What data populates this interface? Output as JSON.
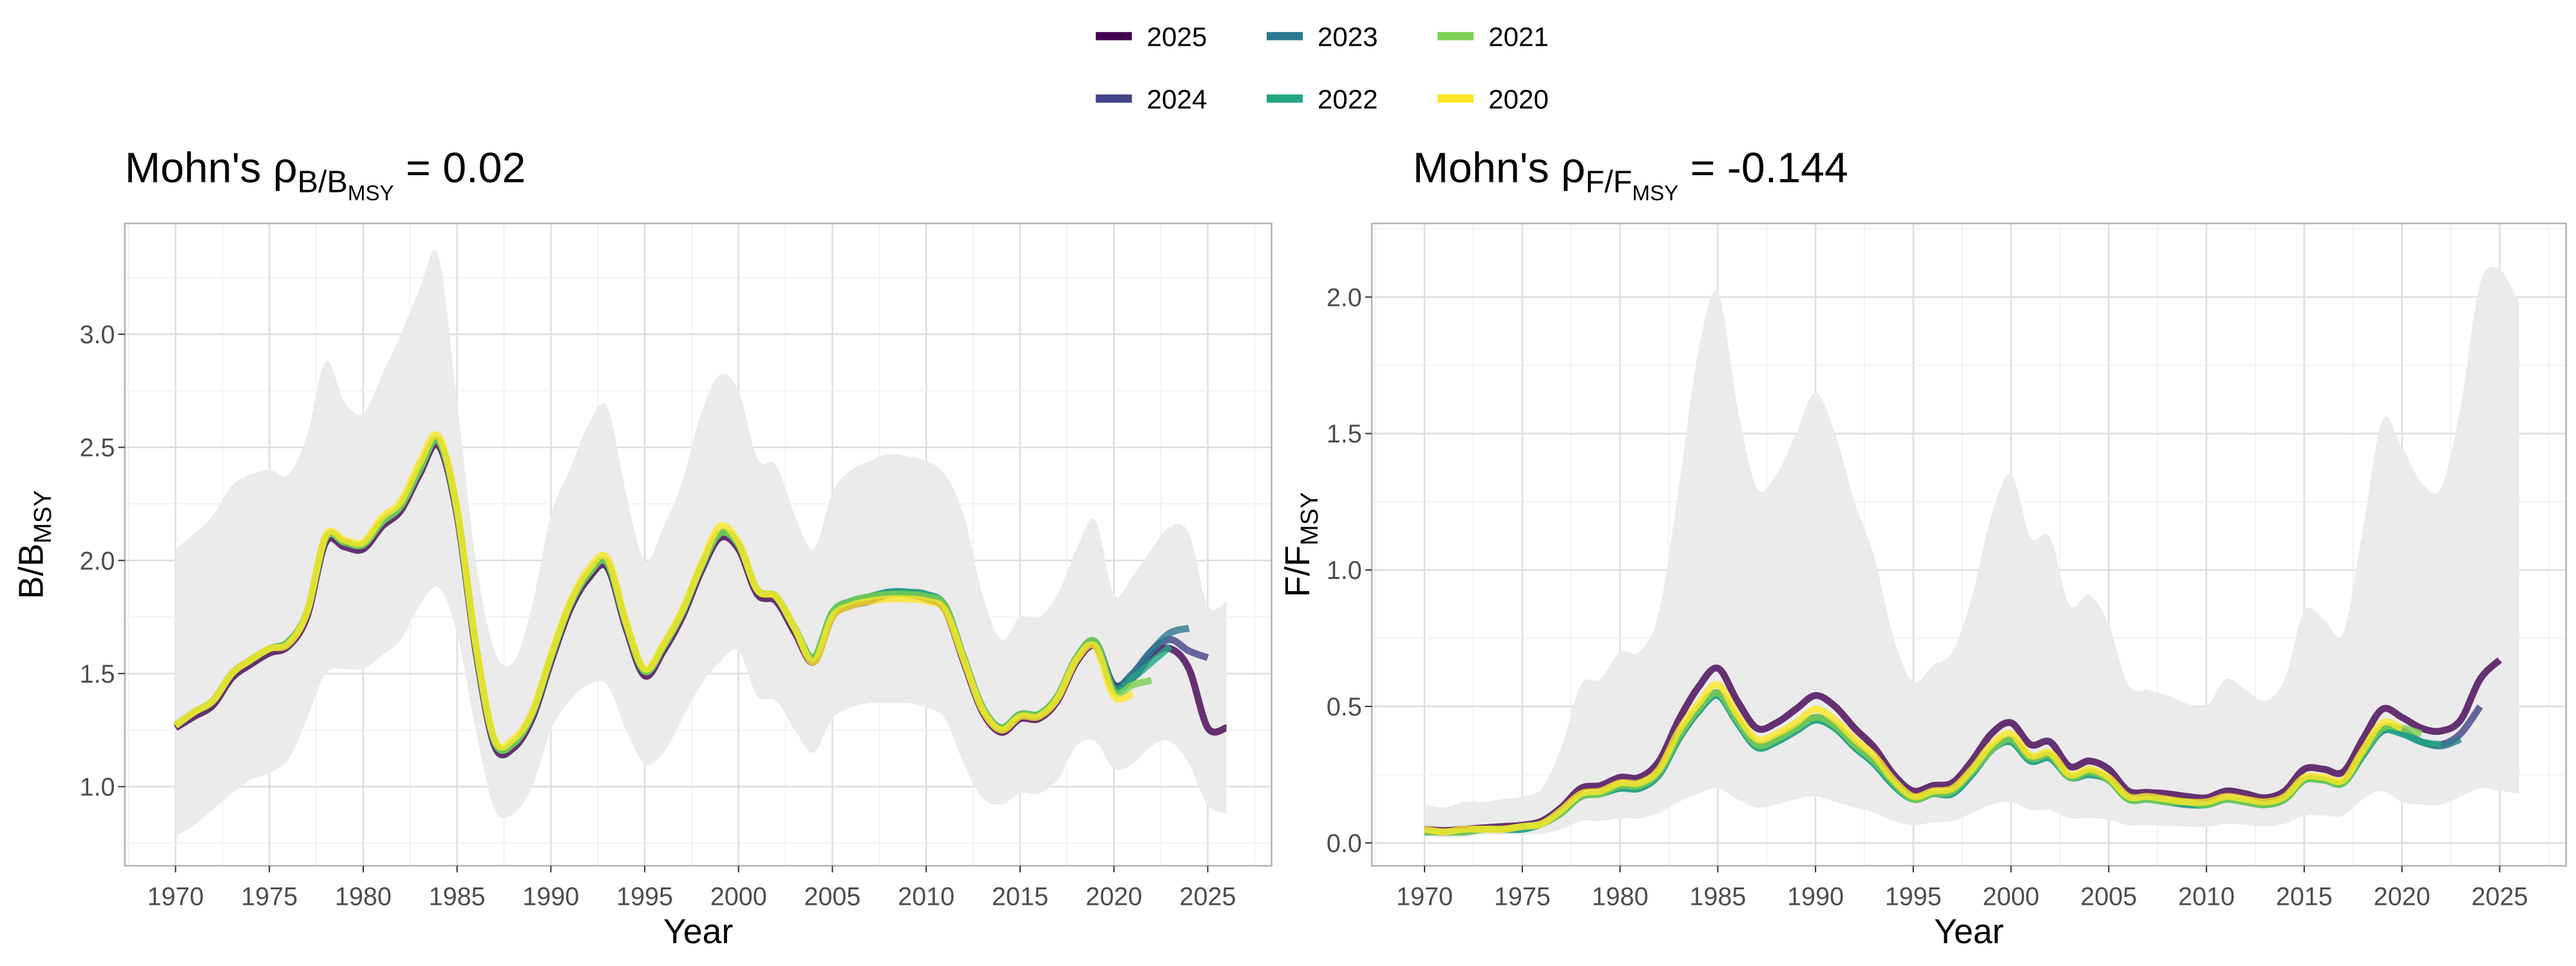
{
  "legend": {
    "position": "top",
    "items": [
      {
        "label": "2025",
        "color": "#440154"
      },
      {
        "label": "2023",
        "color": "#2A788E"
      },
      {
        "label": "2021",
        "color": "#7AD151"
      },
      {
        "label": "2024",
        "color": "#414487"
      },
      {
        "label": "2022",
        "color": "#22A884"
      },
      {
        "label": "2020",
        "color": "#FDE725"
      }
    ]
  },
  "chart_data": [
    {
      "type": "line",
      "title": {
        "prefix": "Mohn's ρ",
        "sub": "B/B",
        "subsub": "MSY",
        "suffix": " = 0.02"
      },
      "xlabel": "Year",
      "ylabel": {
        "main": "B/B",
        "sub": "MSY"
      },
      "xlim": [
        1967.3,
        2028.4
      ],
      "ylim": [
        0.65,
        3.49
      ],
      "xticks": [
        "1970",
        "1975",
        "1980",
        "1985",
        "1990",
        "1995",
        "2000",
        "2005",
        "2010",
        "2015",
        "2020",
        "2025"
      ],
      "yticks": [
        "1.0",
        "1.5",
        "2.0",
        "2.5",
        "3.0"
      ],
      "grid": true,
      "band": {
        "start": 1970,
        "upper": [
          2.05,
          2.12,
          2.2,
          2.33,
          2.38,
          2.4,
          2.38,
          2.55,
          2.88,
          2.7,
          2.65,
          2.82,
          3.0,
          3.2,
          3.35,
          2.7,
          2.0,
          1.6,
          1.55,
          1.8,
          2.2,
          2.4,
          2.6,
          2.68,
          2.3,
          2.0,
          2.15,
          2.35,
          2.65,
          2.82,
          2.75,
          2.45,
          2.42,
          2.2,
          2.05,
          2.3,
          2.4,
          2.44,
          2.47,
          2.46,
          2.44,
          2.38,
          2.2,
          1.85,
          1.65,
          1.75,
          1.75,
          1.85,
          2.05,
          2.18,
          1.85,
          1.93,
          2.05,
          2.15,
          2.12,
          1.8,
          1.82
        ],
        "lower": [
          0.78,
          0.83,
          0.9,
          0.97,
          1.03,
          1.06,
          1.12,
          1.3,
          1.5,
          1.52,
          1.52,
          1.58,
          1.65,
          1.8,
          1.88,
          1.68,
          1.25,
          0.9,
          0.88,
          1.0,
          1.25,
          1.38,
          1.45,
          1.45,
          1.25,
          1.1,
          1.15,
          1.3,
          1.45,
          1.55,
          1.6,
          1.4,
          1.38,
          1.25,
          1.15,
          1.3,
          1.35,
          1.37,
          1.37,
          1.37,
          1.35,
          1.3,
          1.1,
          0.95,
          0.92,
          0.97,
          0.97,
          1.03,
          1.18,
          1.2,
          1.08,
          1.1,
          1.18,
          1.2,
          1.1,
          0.92,
          0.88
        ]
      },
      "series": [
        {
          "name": "2025",
          "start": 1970,
          "values": [
            1.26,
            1.31,
            1.36,
            1.48,
            1.54,
            1.59,
            1.62,
            1.75,
            2.08,
            2.06,
            2.05,
            2.15,
            2.22,
            2.38,
            2.51,
            2.2,
            1.6,
            1.18,
            1.17,
            1.3,
            1.55,
            1.78,
            1.92,
            1.97,
            1.7,
            1.49,
            1.6,
            1.75,
            1.95,
            2.1,
            2.05,
            1.85,
            1.82,
            1.68,
            1.55,
            1.75,
            1.8,
            1.82,
            1.85,
            1.85,
            1.83,
            1.78,
            1.55,
            1.33,
            1.24,
            1.3,
            1.3,
            1.38,
            1.55,
            1.62,
            1.45,
            1.48,
            1.58,
            1.61,
            1.52,
            1.26,
            1.26
          ]
        },
        {
          "name": "2024",
          "start": 1970,
          "values": [
            1.27,
            1.33,
            1.38,
            1.5,
            1.56,
            1.61,
            1.64,
            1.77,
            2.1,
            2.08,
            2.07,
            2.17,
            2.24,
            2.4,
            2.53,
            2.22,
            1.62,
            1.2,
            1.19,
            1.32,
            1.57,
            1.8,
            1.94,
            1.99,
            1.72,
            1.51,
            1.62,
            1.77,
            1.97,
            2.12,
            2.07,
            1.87,
            1.84,
            1.7,
            1.57,
            1.77,
            1.82,
            1.84,
            1.86,
            1.86,
            1.84,
            1.8,
            1.57,
            1.35,
            1.26,
            1.32,
            1.32,
            1.4,
            1.57,
            1.64,
            1.45,
            1.5,
            1.6,
            1.65,
            1.6,
            1.57
          ]
        },
        {
          "name": "2023",
          "start": 1970,
          "values": [
            1.27,
            1.33,
            1.38,
            1.5,
            1.56,
            1.61,
            1.64,
            1.77,
            2.1,
            2.08,
            2.07,
            2.17,
            2.24,
            2.4,
            2.53,
            2.22,
            1.62,
            1.2,
            1.19,
            1.32,
            1.57,
            1.8,
            1.94,
            1.99,
            1.72,
            1.51,
            1.62,
            1.77,
            1.97,
            2.12,
            2.07,
            1.87,
            1.84,
            1.7,
            1.57,
            1.77,
            1.82,
            1.84,
            1.86,
            1.86,
            1.85,
            1.8,
            1.57,
            1.35,
            1.26,
            1.32,
            1.32,
            1.4,
            1.57,
            1.64,
            1.44,
            1.5,
            1.6,
            1.68,
            1.7
          ]
        },
        {
          "name": "2022",
          "start": 1970,
          "values": [
            1.27,
            1.33,
            1.38,
            1.5,
            1.56,
            1.61,
            1.64,
            1.77,
            2.1,
            2.08,
            2.07,
            2.17,
            2.24,
            2.4,
            2.53,
            2.22,
            1.62,
            1.2,
            1.19,
            1.32,
            1.57,
            1.8,
            1.94,
            1.99,
            1.72,
            1.51,
            1.62,
            1.77,
            1.97,
            2.12,
            2.07,
            1.87,
            1.84,
            1.7,
            1.57,
            1.77,
            1.82,
            1.84,
            1.86,
            1.86,
            1.85,
            1.8,
            1.57,
            1.35,
            1.26,
            1.32,
            1.32,
            1.4,
            1.57,
            1.64,
            1.43,
            1.48,
            1.55,
            1.62
          ]
        },
        {
          "name": "2021",
          "start": 1970,
          "values": [
            1.27,
            1.33,
            1.38,
            1.5,
            1.56,
            1.61,
            1.64,
            1.77,
            2.1,
            2.08,
            2.07,
            2.17,
            2.24,
            2.4,
            2.53,
            2.22,
            1.62,
            1.2,
            1.19,
            1.32,
            1.57,
            1.8,
            1.94,
            1.99,
            1.72,
            1.51,
            1.62,
            1.77,
            1.97,
            2.12,
            2.07,
            1.87,
            1.84,
            1.7,
            1.57,
            1.77,
            1.82,
            1.84,
            1.85,
            1.85,
            1.84,
            1.8,
            1.57,
            1.35,
            1.26,
            1.32,
            1.32,
            1.4,
            1.57,
            1.64,
            1.42,
            1.45,
            1.47
          ]
        },
        {
          "name": "2020",
          "start": 1970,
          "values": [
            1.27,
            1.33,
            1.38,
            1.5,
            1.56,
            1.61,
            1.63,
            1.77,
            2.11,
            2.09,
            2.08,
            2.19,
            2.26,
            2.43,
            2.55,
            2.23,
            1.63,
            1.21,
            1.21,
            1.33,
            1.58,
            1.81,
            1.96,
            2.01,
            1.73,
            1.52,
            1.63,
            1.78,
            1.98,
            2.15,
            2.08,
            1.87,
            1.84,
            1.7,
            1.55,
            1.75,
            1.8,
            1.82,
            1.83,
            1.83,
            1.82,
            1.78,
            1.56,
            1.34,
            1.25,
            1.31,
            1.31,
            1.39,
            1.56,
            1.62,
            1.4,
            1.41
          ]
        }
      ]
    },
    {
      "type": "line",
      "title": {
        "prefix": "Mohn's ρ",
        "sub": "F/F",
        "subsub": "MSY",
        "suffix": " = -0.144"
      },
      "xlabel": "Year",
      "ylabel": {
        "main": "F/F",
        "sub": "MSY"
      },
      "xlim": [
        1967.3,
        2028.4
      ],
      "ylim": [
        -0.084,
        2.27
      ],
      "xticks": [
        "1970",
        "1975",
        "1980",
        "1985",
        "1990",
        "1995",
        "2000",
        "2005",
        "2010",
        "2015",
        "2020",
        "2025"
      ],
      "yticks": [
        "0.0",
        "0.5",
        "1.0",
        "1.5",
        "2.0"
      ],
      "grid": true,
      "band": {
        "start": 1970,
        "upper": [
          0.14,
          0.13,
          0.15,
          0.15,
          0.16,
          0.17,
          0.2,
          0.35,
          0.58,
          0.6,
          0.7,
          0.7,
          0.85,
          1.3,
          1.8,
          2.02,
          1.6,
          1.3,
          1.35,
          1.5,
          1.65,
          1.5,
          1.25,
          1.05,
          0.75,
          0.59,
          0.65,
          0.7,
          0.9,
          1.2,
          1.35,
          1.12,
          1.12,
          0.87,
          0.91,
          0.8,
          0.58,
          0.56,
          0.54,
          0.51,
          0.5,
          0.6,
          0.56,
          0.52,
          0.6,
          0.85,
          0.82,
          0.77,
          1.15,
          1.55,
          1.45,
          1.32,
          1.3,
          1.6,
          2.05,
          2.1,
          1.98
        ],
        "lower": [
          0.03,
          0.02,
          0.02,
          0.03,
          0.03,
          0.03,
          0.035,
          0.05,
          0.08,
          0.08,
          0.09,
          0.09,
          0.11,
          0.15,
          0.18,
          0.2,
          0.16,
          0.13,
          0.14,
          0.16,
          0.17,
          0.15,
          0.13,
          0.11,
          0.08,
          0.065,
          0.075,
          0.08,
          0.11,
          0.14,
          0.15,
          0.12,
          0.12,
          0.09,
          0.09,
          0.085,
          0.065,
          0.065,
          0.063,
          0.06,
          0.058,
          0.07,
          0.066,
          0.06,
          0.07,
          0.1,
          0.1,
          0.1,
          0.16,
          0.19,
          0.15,
          0.14,
          0.14,
          0.17,
          0.2,
          0.19,
          0.18
        ]
      },
      "series": [
        {
          "name": "2025",
          "start": 1970,
          "values": [
            0.05,
            0.045,
            0.05,
            0.055,
            0.06,
            0.065,
            0.08,
            0.13,
            0.2,
            0.21,
            0.24,
            0.24,
            0.3,
            0.45,
            0.57,
            0.64,
            0.52,
            0.42,
            0.44,
            0.49,
            0.54,
            0.5,
            0.42,
            0.35,
            0.25,
            0.19,
            0.21,
            0.22,
            0.3,
            0.4,
            0.44,
            0.36,
            0.37,
            0.28,
            0.3,
            0.27,
            0.19,
            0.185,
            0.18,
            0.17,
            0.165,
            0.19,
            0.18,
            0.165,
            0.19,
            0.27,
            0.27,
            0.26,
            0.38,
            0.49,
            0.46,
            0.42,
            0.41,
            0.45,
            0.6,
            0.67
          ]
        },
        {
          "name": "2024",
          "start": 1970,
          "values": [
            0.04,
            0.04,
            0.04,
            0.05,
            0.05,
            0.06,
            0.07,
            0.11,
            0.17,
            0.18,
            0.21,
            0.21,
            0.26,
            0.39,
            0.49,
            0.55,
            0.45,
            0.36,
            0.38,
            0.42,
            0.46,
            0.43,
            0.36,
            0.3,
            0.22,
            0.16,
            0.18,
            0.19,
            0.26,
            0.34,
            0.38,
            0.31,
            0.32,
            0.24,
            0.26,
            0.23,
            0.16,
            0.16,
            0.15,
            0.15,
            0.14,
            0.16,
            0.15,
            0.14,
            0.16,
            0.23,
            0.23,
            0.22,
            0.33,
            0.42,
            0.41,
            0.37,
            0.36,
            0.4,
            0.5
          ]
        },
        {
          "name": "2023",
          "start": 1970,
          "values": [
            0.04,
            0.04,
            0.04,
            0.05,
            0.05,
            0.05,
            0.07,
            0.11,
            0.17,
            0.18,
            0.2,
            0.2,
            0.25,
            0.38,
            0.48,
            0.54,
            0.44,
            0.35,
            0.37,
            0.41,
            0.45,
            0.42,
            0.35,
            0.29,
            0.21,
            0.16,
            0.18,
            0.18,
            0.25,
            0.34,
            0.37,
            0.3,
            0.31,
            0.24,
            0.25,
            0.23,
            0.16,
            0.16,
            0.15,
            0.14,
            0.14,
            0.16,
            0.15,
            0.14,
            0.16,
            0.23,
            0.23,
            0.22,
            0.32,
            0.41,
            0.4,
            0.37,
            0.355,
            0.38
          ]
        },
        {
          "name": "2022",
          "start": 1970,
          "values": [
            0.04,
            0.04,
            0.04,
            0.05,
            0.05,
            0.05,
            0.07,
            0.11,
            0.17,
            0.18,
            0.2,
            0.2,
            0.25,
            0.38,
            0.48,
            0.54,
            0.44,
            0.35,
            0.37,
            0.41,
            0.45,
            0.42,
            0.35,
            0.29,
            0.21,
            0.16,
            0.18,
            0.18,
            0.25,
            0.34,
            0.37,
            0.3,
            0.31,
            0.24,
            0.25,
            0.23,
            0.16,
            0.16,
            0.15,
            0.14,
            0.14,
            0.16,
            0.15,
            0.14,
            0.16,
            0.23,
            0.23,
            0.22,
            0.32,
            0.41,
            0.4,
            0.37,
            0.36
          ]
        },
        {
          "name": "2021",
          "start": 1970,
          "values": [
            0.04,
            0.04,
            0.04,
            0.05,
            0.05,
            0.06,
            0.07,
            0.11,
            0.17,
            0.18,
            0.21,
            0.21,
            0.26,
            0.39,
            0.49,
            0.55,
            0.45,
            0.36,
            0.38,
            0.42,
            0.46,
            0.43,
            0.36,
            0.3,
            0.22,
            0.16,
            0.18,
            0.19,
            0.26,
            0.34,
            0.38,
            0.31,
            0.32,
            0.24,
            0.26,
            0.23,
            0.16,
            0.16,
            0.15,
            0.15,
            0.14,
            0.16,
            0.15,
            0.14,
            0.16,
            0.23,
            0.23,
            0.22,
            0.33,
            0.42,
            0.42,
            0.4
          ]
        },
        {
          "name": "2020",
          "start": 1970,
          "values": [
            0.05,
            0.04,
            0.05,
            0.05,
            0.05,
            0.06,
            0.07,
            0.12,
            0.18,
            0.19,
            0.22,
            0.22,
            0.27,
            0.41,
            0.51,
            0.58,
            0.47,
            0.38,
            0.4,
            0.44,
            0.49,
            0.45,
            0.38,
            0.32,
            0.23,
            0.17,
            0.19,
            0.2,
            0.27,
            0.36,
            0.4,
            0.32,
            0.33,
            0.25,
            0.27,
            0.24,
            0.17,
            0.17,
            0.16,
            0.15,
            0.15,
            0.17,
            0.16,
            0.15,
            0.17,
            0.24,
            0.24,
            0.23,
            0.34,
            0.44,
            0.42
          ]
        }
      ]
    }
  ]
}
